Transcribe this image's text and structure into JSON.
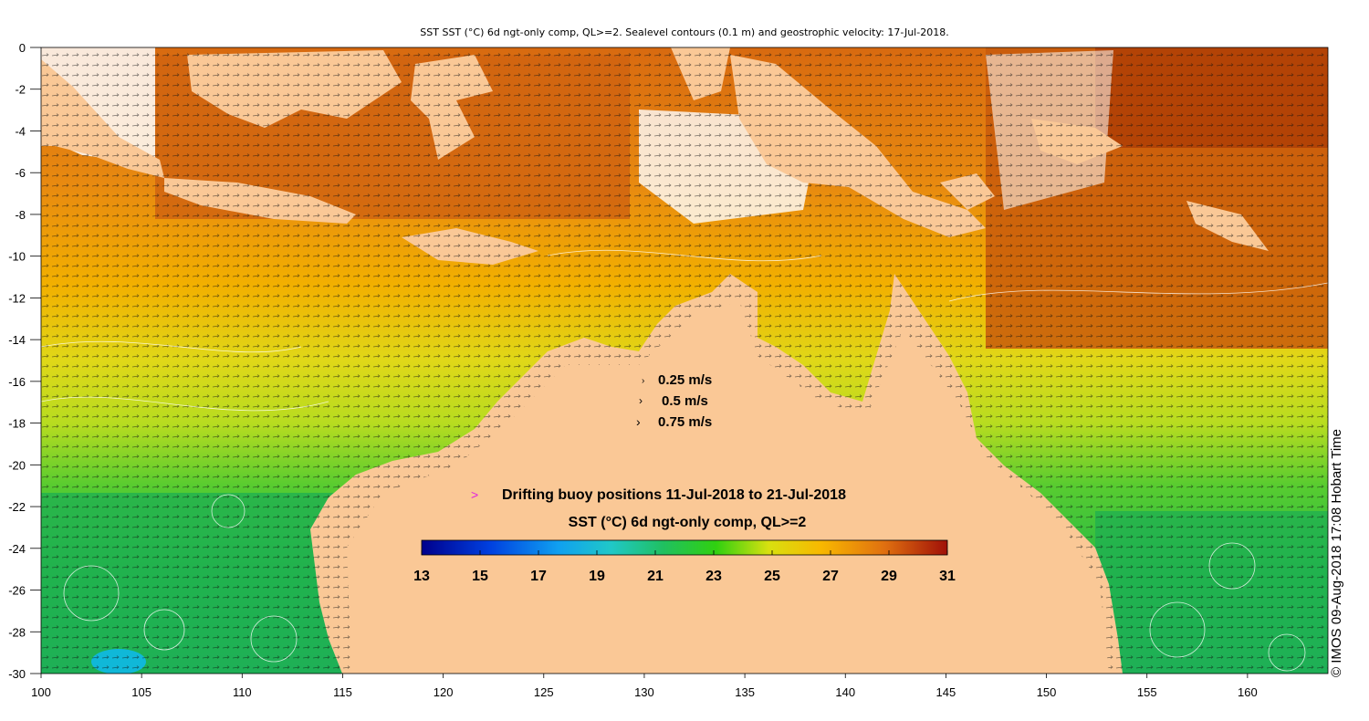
{
  "title": "SST SST (°C) 6d ngt-only comp, QL>=2. Sealevel contours (0.1 m) and geostrophic velocity: 17-Jul-2018.",
  "credit": "© IMOS 09-Aug-2018 17:08 Hobart Time",
  "axes": {
    "lon_range": [
      100,
      164
    ],
    "lat_range": [
      -30,
      0
    ],
    "x_ticks": [
      "100",
      "105",
      "110",
      "115",
      "120",
      "125",
      "130",
      "135",
      "140",
      "145",
      "150",
      "155",
      "160"
    ],
    "y_ticks": [
      "0",
      "-2",
      "-4",
      "-6",
      "-8",
      "-10",
      "-12",
      "-14",
      "-16",
      "-18",
      "-20",
      "-22",
      "-24",
      "-26",
      "-28",
      "-30"
    ]
  },
  "velocity_legend": [
    "0.25 m/s",
    "0.5 m/s",
    "0.75 m/s"
  ],
  "buoy_legend": {
    "marker": ">",
    "label": "Drifting buoy positions 11-Jul-2018 to 21-Jul-2018",
    "marker_color": "#e020e0"
  },
  "colorbar": {
    "title": "SST (°C) 6d ngt-only comp, QL>=2",
    "tick_labels": [
      "13",
      "15",
      "17",
      "19",
      "21",
      "23",
      "25",
      "27",
      "29",
      "31"
    ],
    "range": [
      13,
      31
    ]
  },
  "colors": {
    "land": "#fac896",
    "warm_sea": "#e07a10",
    "hot_sea": "#c04808",
    "mid_sea": "#f0a80a",
    "cool_sea": "#d8d820",
    "green_sea": "#2ec040",
    "cyan_sea": "#10c0e0"
  }
}
